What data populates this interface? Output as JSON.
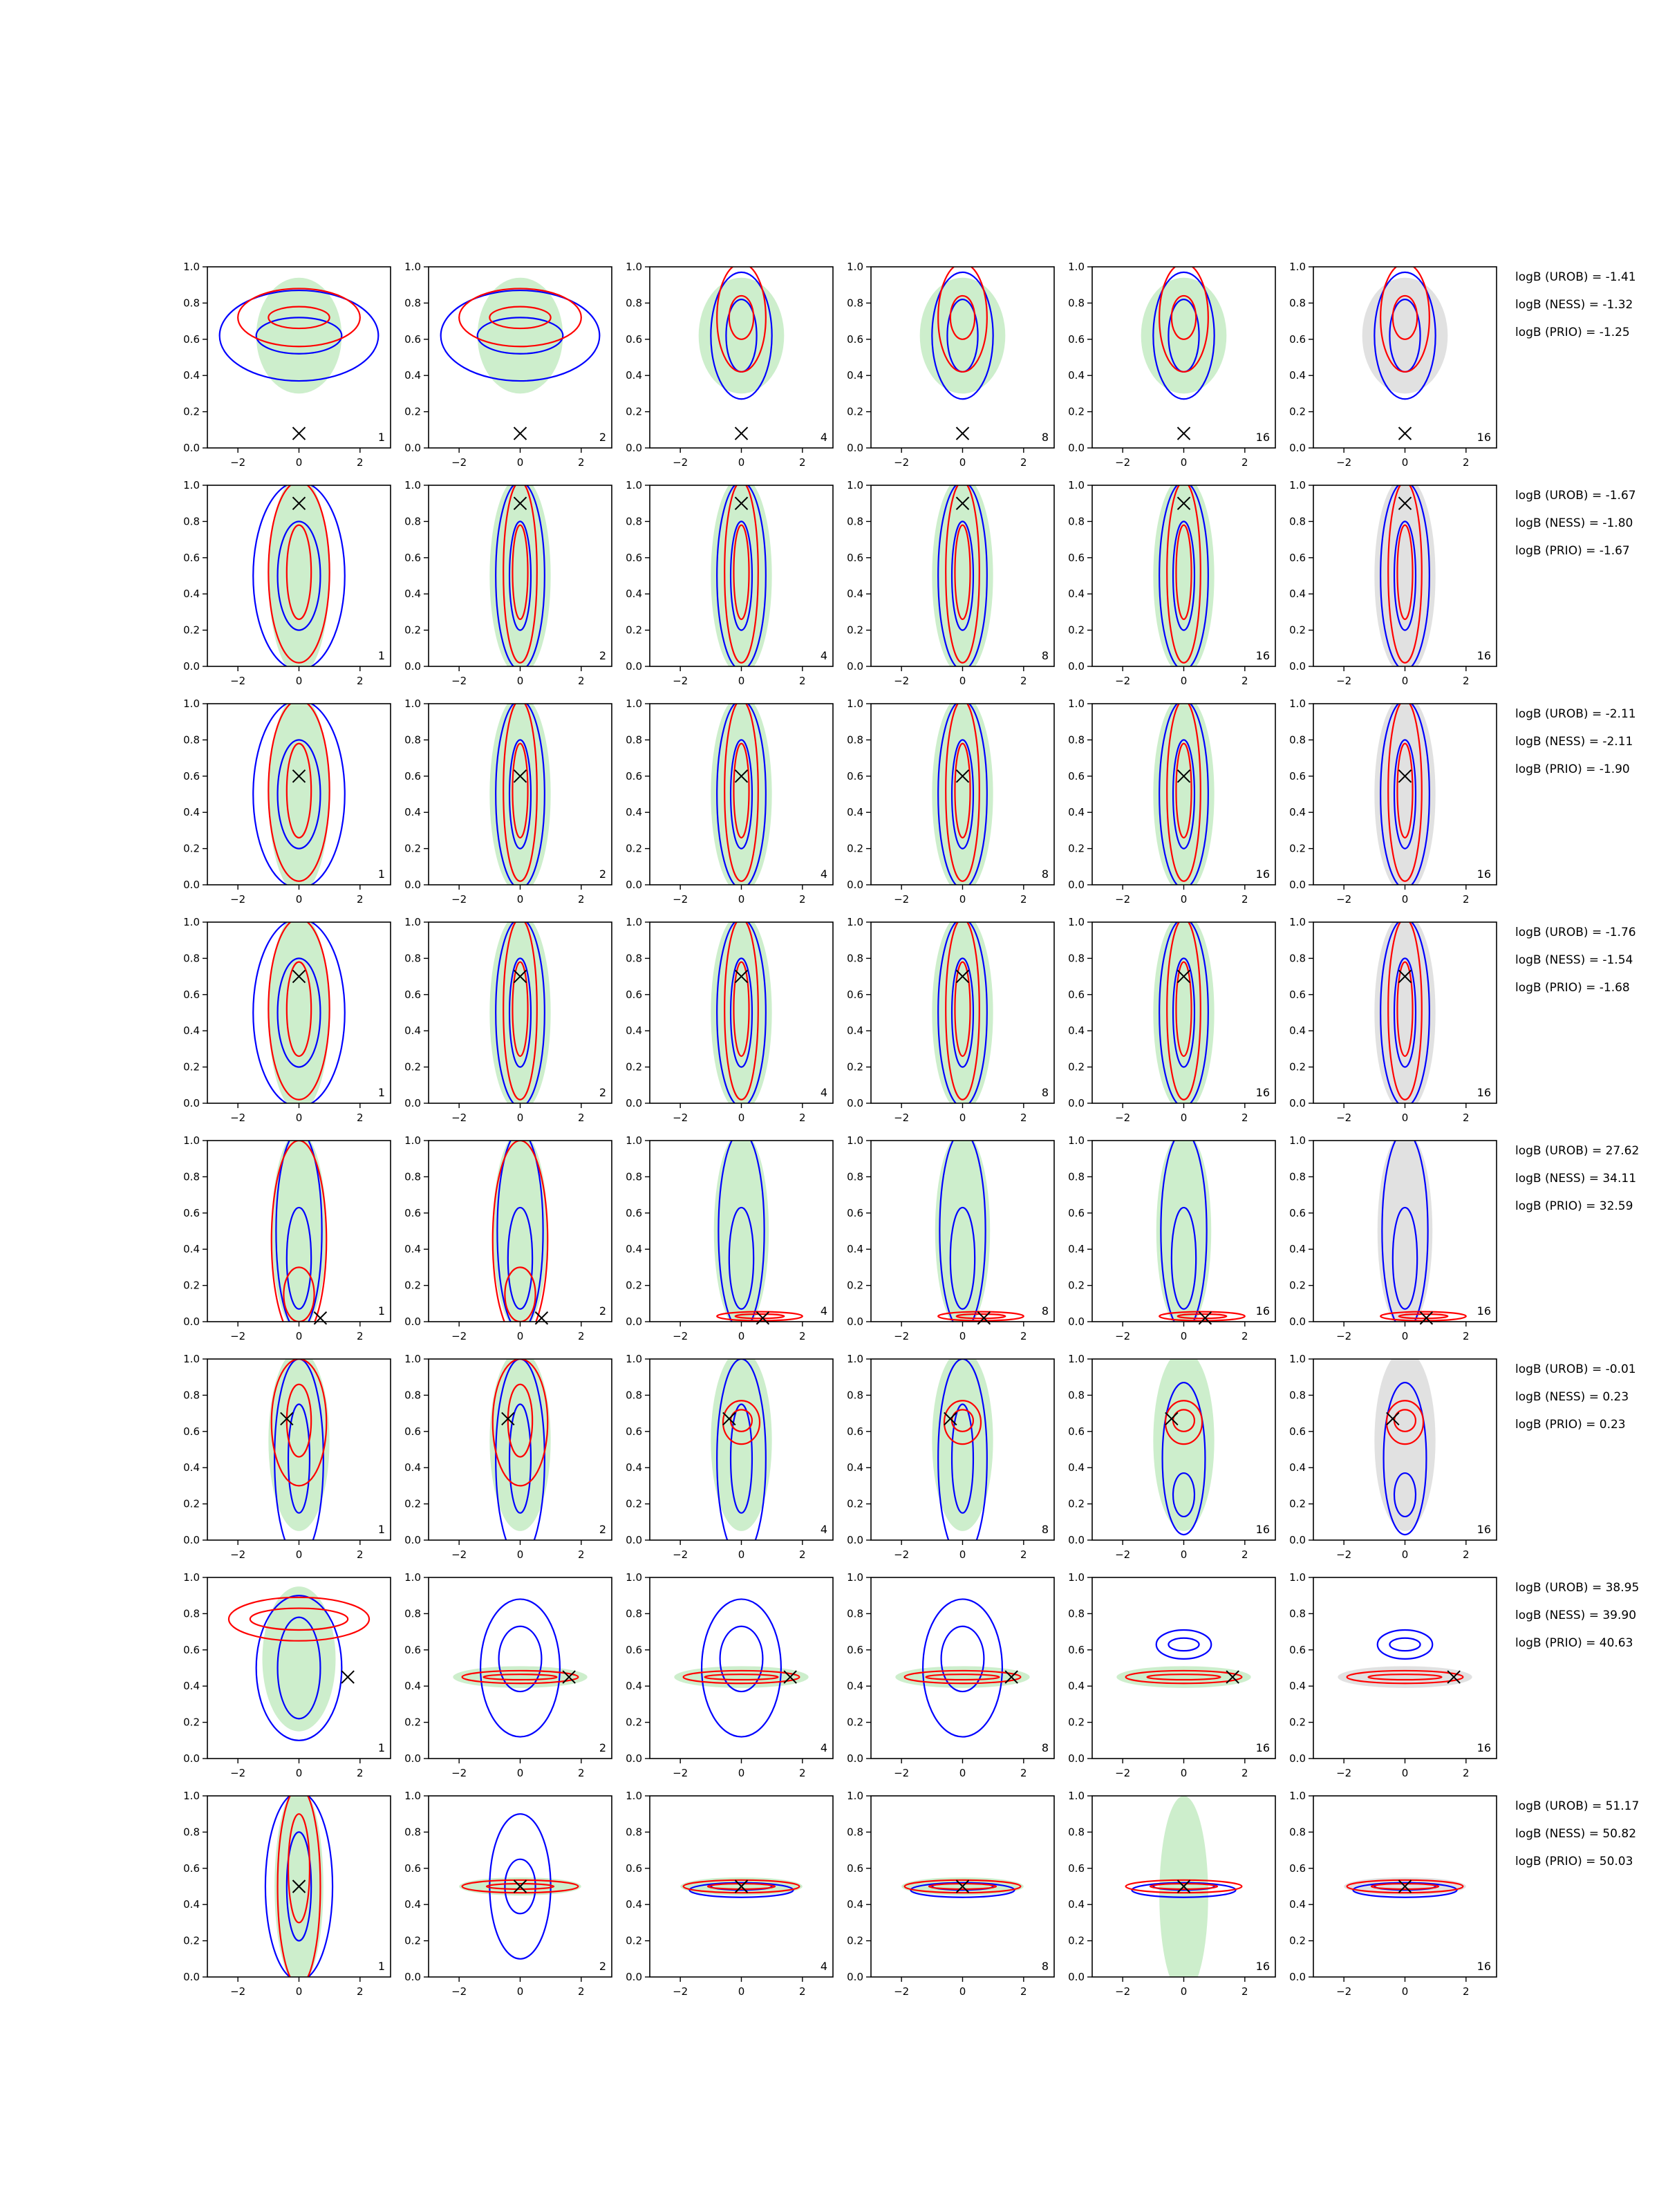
{
  "chart_data": {
    "type": "contour",
    "grid": false,
    "axes": {
      "xlim": [
        -3,
        3
      ],
      "ylim": [
        0,
        1
      ],
      "xticks": [
        -2,
        0,
        2
      ],
      "xtick_labels": [
        "−2",
        "0",
        "2"
      ],
      "yticks": [
        0,
        0.2,
        0.4,
        0.6,
        0.8,
        1.0
      ],
      "ytick_labels": [
        "0.0",
        "0.2",
        "0.4",
        "0.6",
        "0.8",
        "1.0"
      ]
    },
    "column_labels": [
      "1",
      "2",
      "4",
      "8",
      "16",
      "16"
    ],
    "colors": {
      "blue": "#0000ff",
      "red": "#ff0000",
      "green": "#c8ecc6",
      "grey": "#a9a9a9",
      "marker": "#000000"
    },
    "legend_position": "right of each row",
    "rows": [
      {
        "marker": [
          0.0,
          0.08
        ],
        "shape": "top",
        "evidence": [
          {
            "label": "logB (UROB)",
            "value": -1.41
          },
          {
            "label": "logB (NESS)",
            "value": -1.32
          },
          {
            "label": "logB (PRIO)",
            "value": -1.25
          }
        ]
      },
      {
        "marker": [
          0.0,
          0.9
        ],
        "shape": "vert",
        "evidence": [
          {
            "label": "logB (UROB)",
            "value": -1.67
          },
          {
            "label": "logB (NESS)",
            "value": -1.8
          },
          {
            "label": "logB (PRIO)",
            "value": -1.67
          }
        ]
      },
      {
        "marker": [
          0.0,
          0.6
        ],
        "shape": "vert",
        "evidence": [
          {
            "label": "logB (UROB)",
            "value": -2.11
          },
          {
            "label": "logB (NESS)",
            "value": -2.11
          },
          {
            "label": "logB (PRIO)",
            "value": -1.9
          }
        ]
      },
      {
        "marker": [
          0.0,
          0.7
        ],
        "shape": "vert",
        "evidence": [
          {
            "label": "logB (UROB)",
            "value": -1.76
          },
          {
            "label": "logB (NESS)",
            "value": -1.54
          },
          {
            "label": "logB (PRIO)",
            "value": -1.68
          }
        ]
      },
      {
        "marker": [
          0.7,
          0.02
        ],
        "shape": "low",
        "evidence": [
          {
            "label": "logB (UROB)",
            "value": 27.62
          },
          {
            "label": "logB (NESS)",
            "value": 34.11
          },
          {
            "label": "logB (PRIO)",
            "value": 32.59
          }
        ]
      },
      {
        "marker": [
          -0.4,
          0.67
        ],
        "shape": "mid",
        "evidence": [
          {
            "label": "logB (UROB)",
            "value": -0.01
          },
          {
            "label": "logB (NESS)",
            "value": 0.23
          },
          {
            "label": "logB (PRIO)",
            "value": 0.23
          }
        ]
      },
      {
        "marker": [
          1.6,
          0.45
        ],
        "shape": "band",
        "evidence": [
          {
            "label": "logB (UROB)",
            "value": 38.95
          },
          {
            "label": "logB (NESS)",
            "value": 39.9
          },
          {
            "label": "logB (PRIO)",
            "value": 40.63
          }
        ]
      },
      {
        "marker": [
          0.0,
          0.5
        ],
        "shape": "narrow",
        "evidence": [
          {
            "label": "logB (UROB)",
            "value": 51.17
          },
          {
            "label": "logB (NESS)",
            "value": 50.82
          },
          {
            "label": "logB (PRIO)",
            "value": 50.03
          }
        ]
      }
    ]
  }
}
